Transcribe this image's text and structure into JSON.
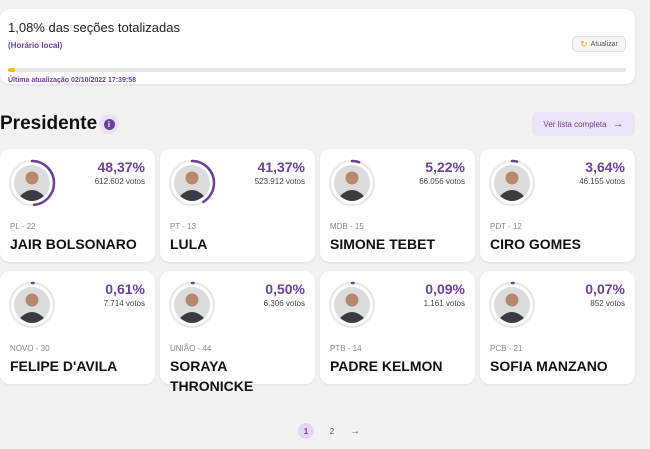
{
  "progress": {
    "headline": "1,08% das seções totalizadas",
    "local_time": "(Horário local)",
    "refresh_label": "Atualizar",
    "percent": 1.08,
    "last_update": "Última atualização 02/10/2022 17:39:58",
    "bar_color": "#f2c400"
  },
  "section": {
    "title": "Presidente",
    "info_icon": "info-icon",
    "full_list_label": "Ver lista completa",
    "full_list_arrow": "→"
  },
  "candidates": [
    {
      "party": "PL - 22",
      "name": "JAIR BOLSONARO",
      "percent": "48,37%",
      "votes": "612.602 votos",
      "share": 0.4837
    },
    {
      "party": "PT - 13",
      "name": "LULA",
      "percent": "41,37%",
      "votes": "523.912 votos",
      "share": 0.4137
    },
    {
      "party": "MDB - 15",
      "name": "SIMONE TEBET",
      "percent": "5,22%",
      "votes": "66.056 votos",
      "share": 0.0522
    },
    {
      "party": "PDT - 12",
      "name": "CIRO GOMES",
      "percent": "3,64%",
      "votes": "46.155 votos",
      "share": 0.0364
    },
    {
      "party": "NOVO - 30",
      "name": "FELIPE D'AVILA",
      "percent": "0,61%",
      "votes": "7.714 votos",
      "share": 0.0061
    },
    {
      "party": "UNIÃO - 44",
      "name": "SORAYA THRONICKE",
      "percent": "0,50%",
      "votes": "6.306 votos",
      "share": 0.005
    },
    {
      "party": "PTB - 14",
      "name": "PADRE KELMON",
      "percent": "0,09%",
      "votes": "1.161 votos",
      "share": 0.0009
    },
    {
      "party": "PCB - 21",
      "name": "SOFIA MANZANO",
      "percent": "0,07%",
      "votes": "852 votos",
      "share": 0.0007
    }
  ],
  "pagination": {
    "pages": [
      "1",
      "2"
    ],
    "current": "1",
    "next_icon": "→"
  },
  "colors": {
    "accent": "#6d3f9b",
    "ring_track": "#e8e8e8"
  }
}
